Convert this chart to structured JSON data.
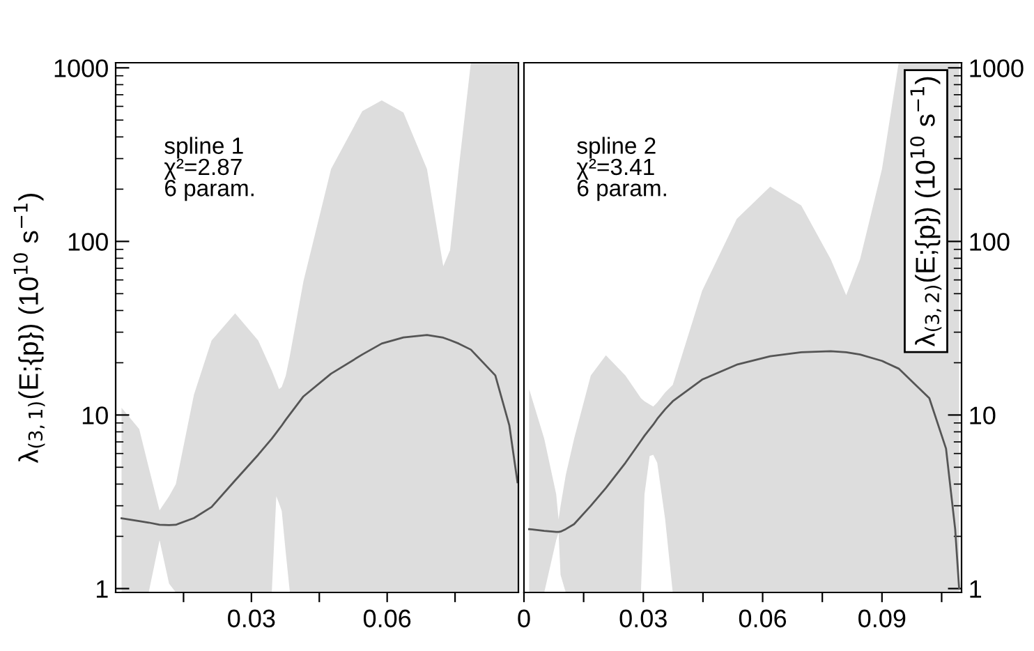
{
  "chart_data": [
    {
      "type": "line",
      "ylabel": "λ$_{(3,1)}$(E;{p}) (10$^{10}$ s$^{−1}$)",
      "annotations": [
        "spline 1",
        "χ²=2.87",
        "6 param."
      ],
      "log": "y",
      "xlim": [
        0,
        0.089
      ],
      "ylim": [
        0.95,
        1070
      ],
      "xticks": [
        {
          "value": 0.015,
          "label": null
        },
        0.03,
        {
          "value": 0.045,
          "label": null
        },
        0.06,
        {
          "value": 0.075,
          "label": null
        }
      ],
      "yticks": [
        1,
        10,
        100,
        1000
      ],
      "series": [
        {
          "color": "#555555",
          "x": [
            0.0013,
            0.0052,
            0.0073,
            0.0097,
            0.0118,
            0.0133,
            0.0173,
            0.0212,
            0.0264,
            0.0315,
            0.0345,
            0.0355,
            0.0361,
            0.0367,
            0.0376,
            0.0385,
            0.0415,
            0.0476,
            0.0545,
            0.0588,
            0.0636,
            0.0688,
            0.0724,
            0.0739,
            0.0758,
            0.0785,
            0.0839,
            0.087,
            0.0888
          ],
          "values": [
            2.54,
            2.45,
            2.4,
            2.33,
            2.32,
            2.33,
            2.55,
            2.95,
            4.2,
            5.9,
            7.3,
            7.9,
            8.3,
            8.7,
            9.4,
            10.1,
            12.8,
            17.3,
            22.3,
            25.8,
            28.0,
            28.9,
            27.9,
            27.0,
            25.8,
            23.8,
            16.9,
            8.7,
            4.1
          ],
          "upper": [
            11.0,
            8.3,
            5.0,
            2.82,
            3.4,
            4.0,
            13.1,
            26.9,
            38.5,
            26.9,
            18,
            15.5,
            14.1,
            14.5,
            16.9,
            22,
            59,
            261,
            563,
            650,
            553,
            261,
            72,
            89,
            261,
            1070,
            1070,
            1070,
            1070
          ],
          "lower": [
            0.95,
            0.95,
            0.95,
            1.9,
            1.07,
            0.95,
            0.95,
            0.95,
            0.95,
            0.95,
            0.95,
            3.4,
            3.1,
            2.8,
            1.6,
            0.95,
            0.95,
            0.95,
            0.95,
            0.95,
            0.95,
            0.95,
            0.95,
            0.95,
            0.95,
            0.95,
            0.95,
            0.95,
            0.95
          ]
        }
      ]
    },
    {
      "type": "line",
      "y2label": "λ$_{(3,2)}$(E;{p}) (10$^{10}$ s$^{−1}$)",
      "annotations": [
        "spline 2",
        "χ²=3.41",
        "6 param."
      ],
      "log": "y2",
      "xlim": [
        0,
        0.11
      ],
      "y2lim": [
        0.95,
        1070
      ],
      "xticks": [
        0,
        {
          "value": 0.015,
          "label": null
        },
        0.03,
        {
          "value": 0.045,
          "label": null
        },
        0.06,
        {
          "value": 0.075,
          "label": null
        },
        0.09,
        {
          "value": 0.105,
          "label": null
        }
      ],
      "y2ticks": [
        1,
        10,
        100,
        1000
      ],
      "series": [
        {
          "axis": "y2",
          "color": "#555555",
          "x": [
            0.0013,
            0.0051,
            0.0081,
            0.0087,
            0.0092,
            0.0105,
            0.0126,
            0.0168,
            0.0206,
            0.0255,
            0.0294,
            0.0303,
            0.0316,
            0.0325,
            0.0335,
            0.0355,
            0.0374,
            0.0448,
            0.0535,
            0.0619,
            0.0697,
            0.0771,
            0.081,
            0.0845,
            0.09,
            0.0942,
            0.1019,
            0.1061,
            0.1084,
            0.1094
          ],
          "values": [
            2.2,
            2.15,
            2.12,
            2.12,
            2.13,
            2.2,
            2.35,
            3.0,
            3.8,
            5.3,
            7.1,
            7.6,
            8.3,
            8.8,
            9.5,
            10.8,
            12.0,
            16.0,
            19.5,
            21.8,
            23.0,
            23.3,
            23.0,
            22.3,
            20.5,
            18.5,
            12.5,
            6.4,
            2.2,
            1.0
          ],
          "upper": [
            14.1,
            7.3,
            3.5,
            2.5,
            3.0,
            4.5,
            7.3,
            16.9,
            22.1,
            16.9,
            12.5,
            12,
            11.5,
            11.2,
            11.8,
            13.5,
            14.9,
            52,
            135,
            207,
            161,
            79,
            49,
            79,
            261,
            1070,
            1070,
            1070,
            1070,
            1070
          ],
          "lower": [
            0.95,
            0.95,
            1.9,
            2.1,
            1.2,
            0.95,
            0.95,
            0.95,
            0.95,
            0.95,
            0.95,
            3.5,
            5.8,
            5.9,
            5.3,
            2.5,
            0.95,
            0.95,
            0.95,
            0.95,
            0.95,
            0.95,
            0.95,
            0.95,
            0.95,
            0.95,
            0.95,
            0.95,
            0.95,
            0.95
          ]
        }
      ]
    }
  ]
}
